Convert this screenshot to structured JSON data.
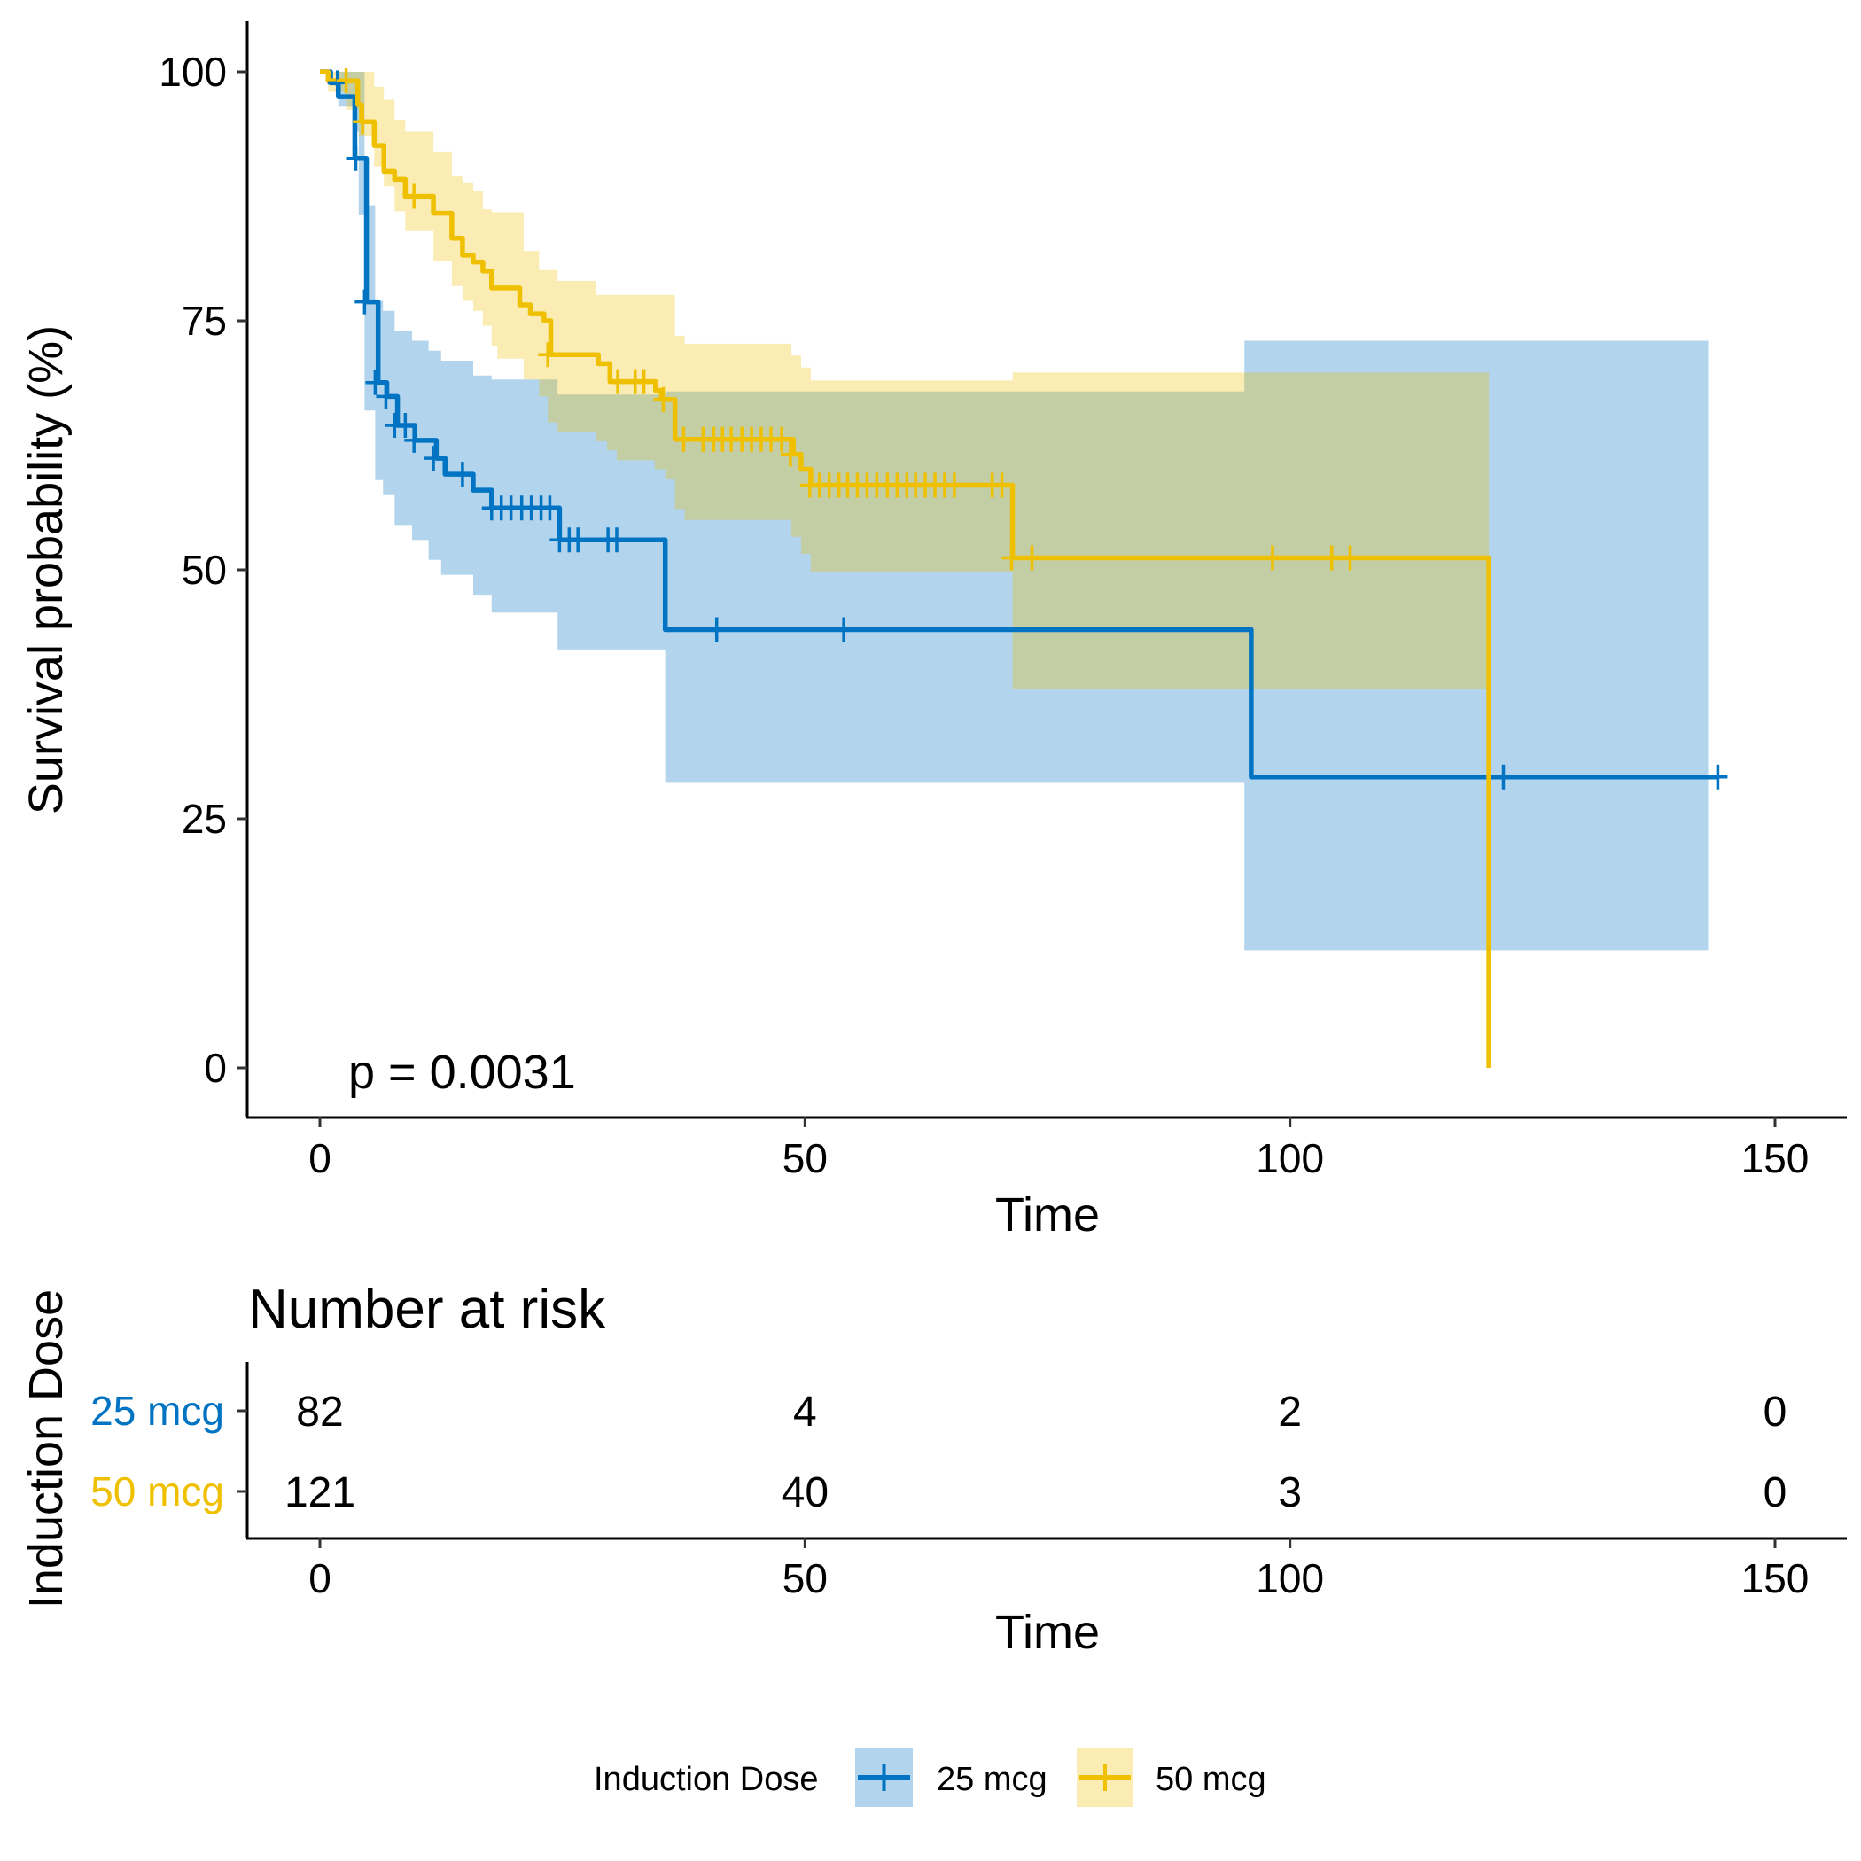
{
  "chart_data": {
    "type": "line",
    "subtype": "kaplan-meier",
    "title": "",
    "xlabel": "Time",
    "ylabel": "Survival probability (%)",
    "xlim": [
      0,
      150
    ],
    "ylim": [
      0,
      100
    ],
    "x_ticks": [
      0,
      50,
      100,
      150
    ],
    "y_ticks": [
      0,
      25,
      50,
      75,
      100
    ],
    "x_tick_labels": [
      "0",
      "50",
      "100",
      "150"
    ],
    "y_tick_labels": [
      "0",
      "25",
      "50",
      "75",
      "100"
    ],
    "grid": false,
    "annotation": "p = 0.0031",
    "legend": {
      "title": "Induction Dose",
      "position": "bottom",
      "entries": [
        "25 mcg",
        "50 mcg"
      ]
    },
    "series": [
      {
        "name": "25 mcg",
        "color": "#0073C2",
        "steps": [
          [
            0,
            100
          ],
          [
            1.1,
            98.9
          ],
          [
            1.9,
            97.5
          ],
          [
            3.6,
            91.3
          ],
          [
            4.8,
            76.9
          ],
          [
            6.0,
            68.8
          ],
          [
            6.9,
            67.4
          ],
          [
            8.0,
            64.5
          ],
          [
            9.8,
            63.0
          ],
          [
            12.0,
            61.2
          ],
          [
            12.9,
            59.6
          ],
          [
            15.8,
            58.0
          ],
          [
            17.7,
            56.2
          ],
          [
            24.7,
            53.0
          ],
          [
            35.6,
            44.0
          ],
          [
            96.0,
            29.2
          ]
        ],
        "end_time": 144.1,
        "censored": [
          [
            1.8,
            98.9
          ],
          [
            3.7,
            91.3
          ],
          [
            4.6,
            76.9
          ],
          [
            5.7,
            68.8
          ],
          [
            6.8,
            67.4
          ],
          [
            7.7,
            64.5
          ],
          [
            8.8,
            64.5
          ],
          [
            9.7,
            63.0
          ],
          [
            11.7,
            61.2
          ],
          [
            14.7,
            59.6
          ],
          [
            17.7,
            56.2
          ],
          [
            18.7,
            56.2
          ],
          [
            19.7,
            56.2
          ],
          [
            20.8,
            56.2
          ],
          [
            21.8,
            56.2
          ],
          [
            22.8,
            56.2
          ],
          [
            23.7,
            56.2
          ],
          [
            24.7,
            53.0
          ],
          [
            25.7,
            53.0
          ],
          [
            26.6,
            53.0
          ],
          [
            29.7,
            53.0
          ],
          [
            30.6,
            53.0
          ],
          [
            40.9,
            44.0
          ],
          [
            54.0,
            44.0
          ],
          [
            122.0,
            29.2
          ],
          [
            144.1,
            29.2
          ]
        ],
        "ci": [
          [
            0,
            100,
            100
          ],
          [
            1.9,
            96.5,
            100
          ],
          [
            3.6,
            94,
            100
          ],
          [
            4.0,
            85.6,
            100
          ],
          [
            4.6,
            66,
            86.6
          ],
          [
            5.7,
            59,
            77
          ],
          [
            6.5,
            57.5,
            76
          ],
          [
            7.7,
            54.5,
            74
          ],
          [
            9.5,
            53,
            73
          ],
          [
            11.2,
            51,
            72
          ],
          [
            12.5,
            49.5,
            71
          ],
          [
            15.8,
            47.5,
            69.5
          ],
          [
            17.7,
            45.7,
            69.1
          ],
          [
            24.5,
            42.0,
            67.6
          ],
          [
            35.6,
            28.7,
            67.9
          ],
          [
            95.3,
            11.8,
            73.0
          ]
        ],
        "ci_end": 143.1
      },
      {
        "name": "50 mcg",
        "color": "#EFC000",
        "steps": [
          [
            0,
            100
          ],
          [
            0.85,
            99.1
          ],
          [
            3.9,
            96.7
          ],
          [
            4.3,
            95.0
          ],
          [
            5.6,
            92.6
          ],
          [
            6.6,
            90.0
          ],
          [
            7.7,
            89.2
          ],
          [
            8.8,
            87.5
          ],
          [
            11.7,
            85.8
          ],
          [
            13.6,
            83.3
          ],
          [
            14.7,
            81.6
          ],
          [
            15.8,
            80.9
          ],
          [
            16.8,
            80.0
          ],
          [
            17.7,
            78.3
          ],
          [
            20.6,
            76.6
          ],
          [
            21.7,
            75.7
          ],
          [
            23.1,
            75.0
          ],
          [
            23.8,
            71.6
          ],
          [
            28.7,
            70.7
          ],
          [
            29.9,
            68.9
          ],
          [
            34.6,
            68.0
          ],
          [
            35.2,
            67.1
          ],
          [
            36.6,
            63.1
          ],
          [
            48.8,
            61.6
          ],
          [
            49.6,
            60.1
          ],
          [
            50.6,
            58.5
          ],
          [
            71.4,
            51.2
          ],
          [
            120.5,
            0
          ]
        ],
        "end_time": 120.5,
        "censored": [
          [
            2.7,
            99.1
          ],
          [
            4.4,
            95.0
          ],
          [
            9.7,
            87.5
          ],
          [
            23.5,
            71.6
          ],
          [
            30.7,
            68.9
          ],
          [
            32.5,
            68.9
          ],
          [
            33.4,
            68.9
          ],
          [
            35.4,
            67.1
          ],
          [
            37.5,
            63.1
          ],
          [
            39.5,
            63.1
          ],
          [
            40.6,
            63.1
          ],
          [
            41.5,
            63.1
          ],
          [
            42.4,
            63.1
          ],
          [
            43.5,
            63.1
          ],
          [
            44.5,
            63.1
          ],
          [
            45.5,
            63.1
          ],
          [
            46.5,
            63.1
          ],
          [
            47.6,
            63.1
          ],
          [
            48.5,
            61.6
          ],
          [
            50.5,
            58.5
          ],
          [
            51.5,
            58.5
          ],
          [
            52.5,
            58.5
          ],
          [
            53.5,
            58.5
          ],
          [
            54.4,
            58.5
          ],
          [
            55.4,
            58.5
          ],
          [
            56.4,
            58.5
          ],
          [
            57.4,
            58.5
          ],
          [
            58.5,
            58.5
          ],
          [
            59.5,
            58.5
          ],
          [
            60.5,
            58.5
          ],
          [
            61.4,
            58.5
          ],
          [
            62.4,
            58.5
          ],
          [
            63.4,
            58.5
          ],
          [
            64.4,
            58.5
          ],
          [
            65.4,
            58.5
          ],
          [
            69.3,
            58.5
          ],
          [
            70.3,
            58.5
          ],
          [
            71.3,
            51.2
          ],
          [
            73.4,
            51.2
          ],
          [
            98.2,
            51.2
          ],
          [
            104.3,
            51.2
          ],
          [
            106.2,
            51.2
          ]
        ],
        "ci": [
          [
            0,
            100,
            100
          ],
          [
            0.85,
            98,
            100
          ],
          [
            2.7,
            96.2,
            100
          ],
          [
            4.0,
            93.5,
            100
          ],
          [
            5.6,
            90.5,
            98.5
          ],
          [
            6.6,
            88.5,
            97.2
          ],
          [
            7.7,
            86,
            95.2
          ],
          [
            8.8,
            84,
            94
          ],
          [
            11.7,
            81,
            92
          ],
          [
            13.6,
            78.5,
            89.5
          ],
          [
            14.7,
            77,
            88.9
          ],
          [
            15.8,
            76,
            88
          ],
          [
            16.8,
            74.5,
            86.2
          ],
          [
            17.7,
            72.5,
            85.9
          ],
          [
            18.3,
            71.2,
            85.9
          ],
          [
            21.0,
            69.1,
            82
          ],
          [
            22.6,
            67.4,
            80.1
          ],
          [
            23.5,
            64.8,
            80.1
          ],
          [
            24.5,
            63.8,
            79
          ],
          [
            28.5,
            62.9,
            77.6
          ],
          [
            29.6,
            62.0,
            77.6
          ],
          [
            30.6,
            61.0,
            77.6
          ],
          [
            34.5,
            60.1,
            77.6
          ],
          [
            35.6,
            59.1,
            77.6
          ],
          [
            36.6,
            56.1,
            73.5
          ],
          [
            37.6,
            55.0,
            72.7
          ],
          [
            48.6,
            53.3,
            71.5
          ],
          [
            49.6,
            51.6,
            70.3
          ],
          [
            50.6,
            49.8,
            69.0
          ],
          [
            71.4,
            38.0,
            69.8
          ]
        ],
        "ci_end": 120.5
      }
    ],
    "risk_table": {
      "title": "Number at risk",
      "ylabel": "Induction Dose",
      "xlabel": "Time",
      "times": [
        0,
        50,
        100,
        150
      ],
      "time_labels": [
        "0",
        "50",
        "100",
        "150"
      ],
      "rows": [
        {
          "label": "25 mcg",
          "color": "#0073C2",
          "values": [
            "82",
            "4",
            "2",
            "0"
          ]
        },
        {
          "label": "50 mcg",
          "color": "#EFC000",
          "values": [
            "121",
            "40",
            "3",
            "0"
          ]
        }
      ]
    }
  }
}
